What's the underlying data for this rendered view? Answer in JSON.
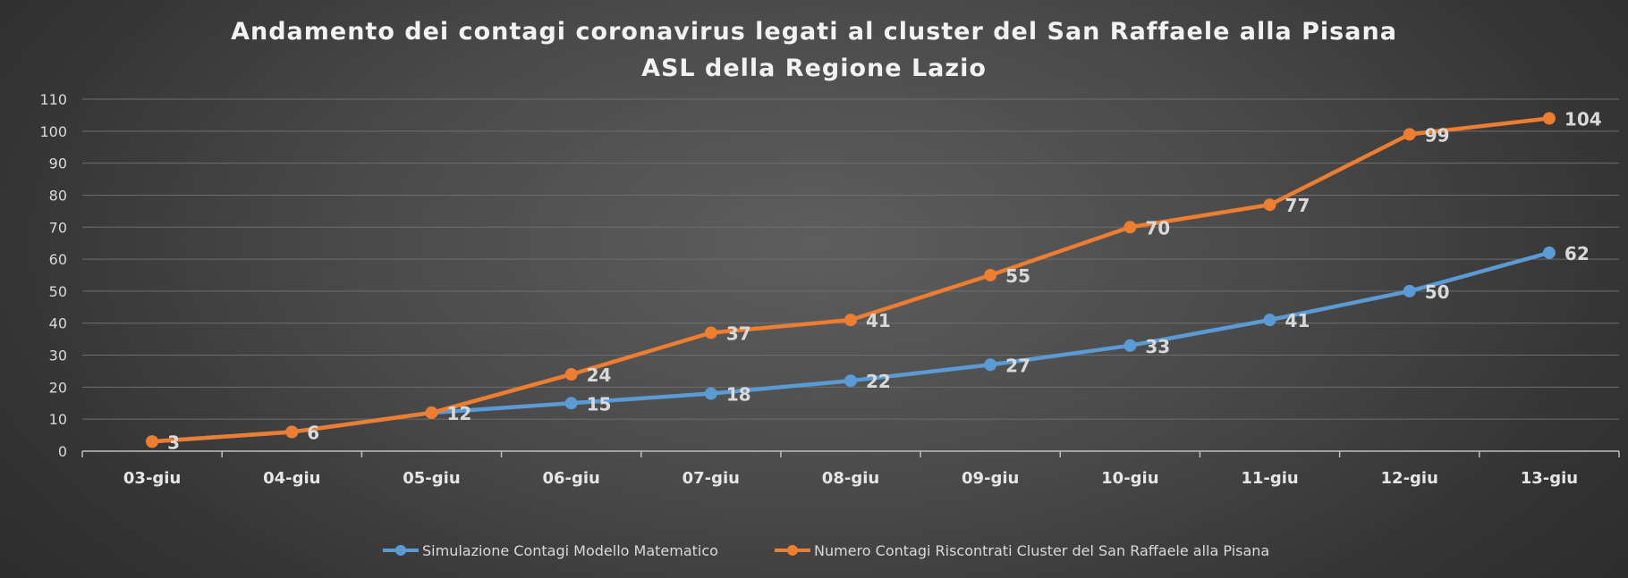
{
  "chart_data": {
    "type": "line",
    "title": "Andamento dei contagi coronavirus legati al cluster del San Raffaele alla Pisana",
    "subtitle": "ASL della Regione Lazio",
    "categories": [
      "03-giu",
      "04-giu",
      "05-giu",
      "06-giu",
      "07-giu",
      "08-giu",
      "09-giu",
      "10-giu",
      "11-giu",
      "12-giu",
      "13-giu"
    ],
    "ylim": [
      0,
      110
    ],
    "yticks": [
      0,
      10,
      20,
      30,
      40,
      50,
      60,
      70,
      80,
      90,
      100,
      110
    ],
    "grid": true,
    "legend_position": "bottom",
    "series": [
      {
        "name": "Simulazione Contagi Modello Matematico",
        "color": "#5b9bd5",
        "values": [
          3,
          6,
          12,
          15,
          18,
          22,
          27,
          33,
          41,
          50,
          62
        ],
        "labels": [
          "",
          "",
          "",
          "15",
          "18",
          "22",
          "27",
          "33",
          "41",
          "50",
          "62"
        ]
      },
      {
        "name": "Numero Contagi Riscontrati Cluster del San Raffaele alla Pisana",
        "color": "#ed7d31",
        "values": [
          3,
          6,
          12,
          24,
          37,
          41,
          55,
          70,
          77,
          99,
          104
        ],
        "labels": [
          "3",
          "6",
          "12",
          "24",
          "37",
          "41",
          "55",
          "70",
          "77",
          "99",
          "104"
        ]
      }
    ]
  }
}
